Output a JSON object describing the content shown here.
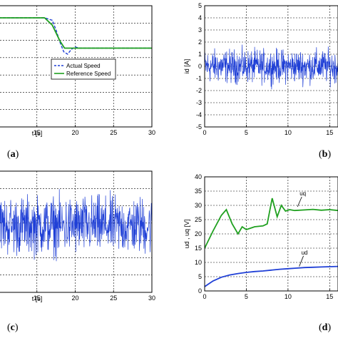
{
  "chart_data": [
    {
      "id": "a",
      "type": "line",
      "panel_label": "a",
      "xlabel": "t [s]",
      "ylabel": "",
      "xlim": [
        10,
        30
      ],
      "ylim": [
        0,
        1
      ],
      "xticks": [
        "15",
        "20",
        "25",
        "30"
      ],
      "xtick_values": [
        15,
        20,
        25,
        30
      ],
      "grid": true,
      "legend": {
        "placement": "center-right",
        "entries": [
          "Actual Speed",
          "Reference Speed"
        ]
      },
      "series": [
        {
          "name": "Actual Speed",
          "color": "#1f3fd6",
          "style": "dashed",
          "x": [
            10,
            16,
            17,
            17.5,
            18,
            18.5,
            19,
            19.5,
            20,
            20.5,
            21,
            30
          ],
          "y": [
            0.9,
            0.9,
            0.88,
            0.8,
            0.7,
            0.62,
            0.6,
            0.64,
            0.66,
            0.65,
            0.65,
            0.65
          ]
        },
        {
          "name": "Reference Speed",
          "color": "#1fa01f",
          "style": "solid",
          "x": [
            10,
            16,
            17,
            18,
            18.6,
            30
          ],
          "y": [
            0.9,
            0.9,
            0.84,
            0.71,
            0.65,
            0.65
          ]
        }
      ]
    },
    {
      "id": "b",
      "type": "line",
      "panel_label": "b",
      "xlabel": "",
      "ylabel": "id [A]",
      "xlim": [
        0,
        16
      ],
      "ylim": [
        -5,
        5
      ],
      "xticks": [
        "0",
        "5",
        "10",
        "15"
      ],
      "xtick_values": [
        0,
        5,
        10,
        15
      ],
      "yticks": [
        "-5",
        "-4",
        "-3",
        "-2",
        "-1",
        "0",
        "1",
        "2",
        "3",
        "4",
        "5"
      ],
      "ytick_values": [
        -5,
        -4,
        -3,
        -2,
        -1,
        0,
        1,
        2,
        3,
        4,
        5
      ],
      "grid": true,
      "series": [
        {
          "color": "#1f3fd6",
          "style": "noise",
          "mean": 0,
          "amplitude": 2.0
        }
      ]
    },
    {
      "id": "c",
      "type": "line",
      "panel_label": "c",
      "xlabel": "t [s]",
      "ylabel": "",
      "xlim": [
        10,
        30
      ],
      "ylim": [
        0,
        1
      ],
      "xticks": [
        "15",
        "20",
        "25",
        "30"
      ],
      "xtick_values": [
        15,
        20,
        25,
        30
      ],
      "grid": true,
      "series": [
        {
          "color": "#1f3fd6",
          "style": "noise",
          "mean": 0.55,
          "amplitude": 0.35
        }
      ]
    },
    {
      "id": "d",
      "type": "line",
      "panel_label": "d",
      "xlabel": "",
      "ylabel": "ud , uq [V]",
      "xlim": [
        0,
        16
      ],
      "ylim": [
        0,
        40
      ],
      "xticks": [
        "0",
        "5",
        "10",
        "15"
      ],
      "xtick_values": [
        0,
        5,
        10,
        15
      ],
      "yticks": [
        "0",
        "5",
        "10",
        "15",
        "20",
        "25",
        "30",
        "35",
        "40"
      ],
      "ytick_values": [
        0,
        5,
        10,
        15,
        20,
        25,
        30,
        35,
        40
      ],
      "grid": true,
      "annotations": [
        {
          "text": "uq",
          "x": 11.4,
          "y": 33.5
        },
        {
          "text": "ud",
          "x": 11.6,
          "y": 12.8
        }
      ],
      "series": [
        {
          "name": "uq",
          "color": "#1fa01f",
          "style": "solid",
          "x": [
            0,
            1,
            2,
            2.6,
            3.3,
            4,
            4.5,
            5,
            5.5,
            6,
            7,
            7.5,
            8.1,
            8.7,
            9.2,
            9.7,
            10.2,
            10.8,
            12,
            13,
            14,
            15,
            16
          ],
          "y": [
            15,
            21,
            26.5,
            28.5,
            23.5,
            20,
            22.5,
            21.5,
            22,
            22.5,
            22.8,
            23.5,
            32.5,
            26,
            30,
            28,
            28.5,
            28.2,
            28.4,
            28.6,
            28.3,
            28.5,
            28.2
          ]
        },
        {
          "name": "ud",
          "color": "#1f3fd6",
          "style": "solid",
          "x": [
            0,
            0.5,
            1,
            2,
            3,
            4,
            5,
            6,
            7,
            8,
            9,
            10,
            11,
            12,
            13,
            14,
            15,
            16
          ],
          "y": [
            1.5,
            2.5,
            3.5,
            4.8,
            5.6,
            6.1,
            6.5,
            6.8,
            7.0,
            7.3,
            7.6,
            7.8,
            8.0,
            8.2,
            8.3,
            8.4,
            8.5,
            8.6
          ]
        }
      ]
    }
  ]
}
